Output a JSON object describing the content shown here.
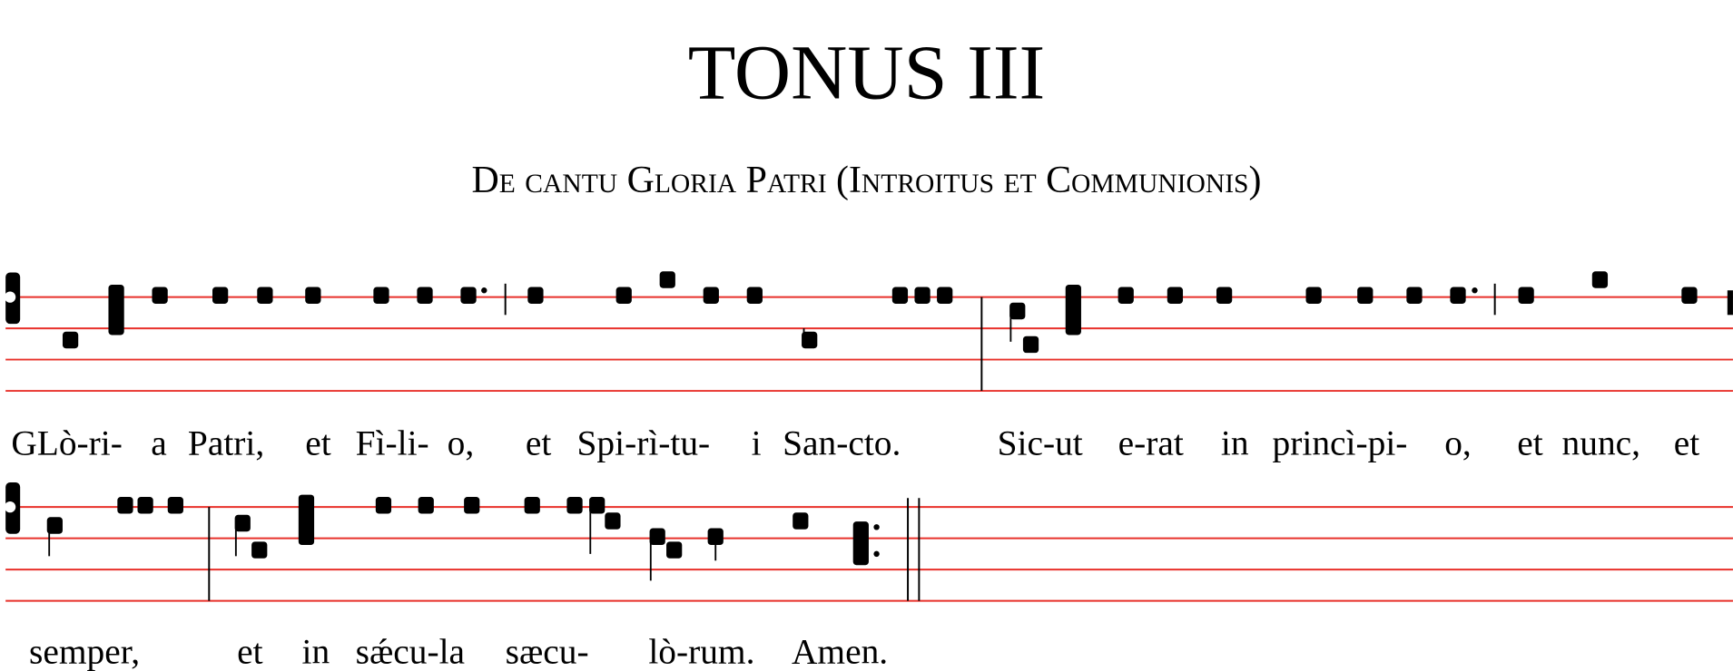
{
  "header": {
    "title": "TONUS III",
    "subtitle": "De cantu Gloria Patri (Introitus et Communionis)"
  },
  "staff_color": "#e8302a",
  "lines": [
    {
      "lyrics": [
        "GLò-ri-",
        "a",
        "Patri,",
        "et",
        "Fì-li-",
        "o,",
        "et",
        "Spi-rì-tu-",
        "i",
        "San-cto.",
        "Sic-ut",
        "e-rat",
        "in",
        "princì-pi-",
        "o,",
        "et",
        "nunc,",
        "et"
      ]
    },
    {
      "lyrics": [
        "semper,",
        "et",
        "in",
        "sǽcu-la",
        "sæcu-",
        "lò-rum.",
        "Amen."
      ]
    }
  ]
}
